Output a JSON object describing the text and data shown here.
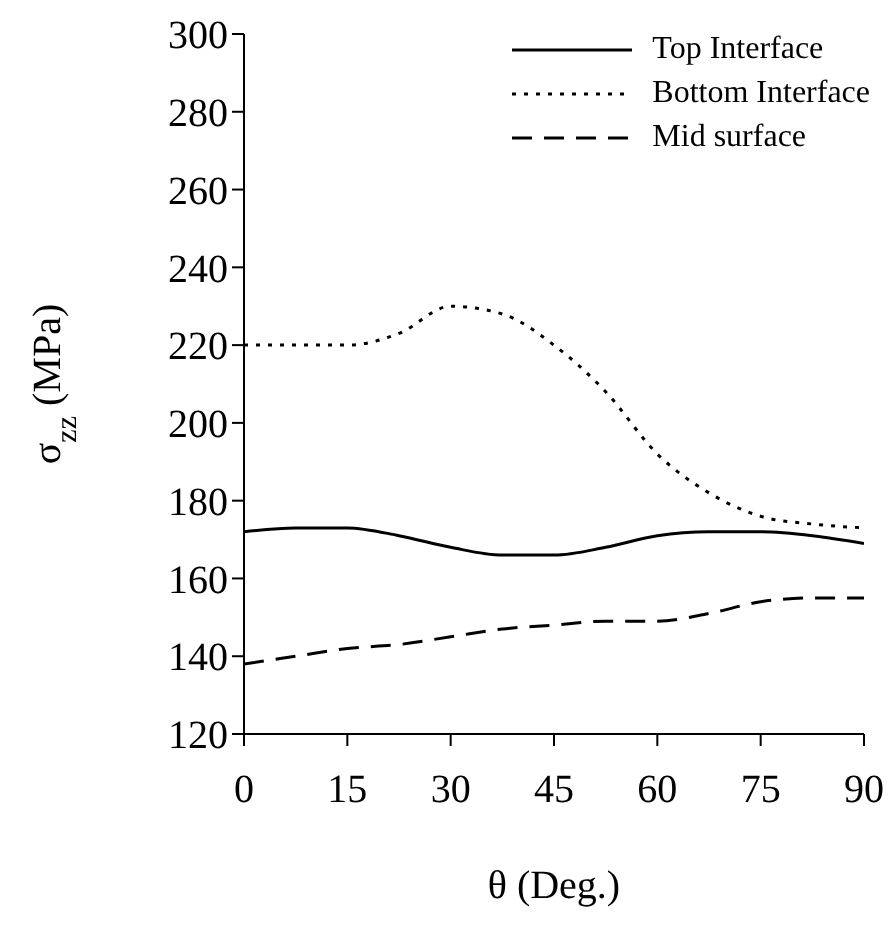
{
  "chart_data": {
    "type": "line",
    "xlabel": "θ (Deg.)",
    "ylabel": "σ$_{zz}$ (MPa)",
    "x": [
      0,
      7.5,
      15,
      22.5,
      30,
      37.5,
      45,
      52.5,
      60,
      67.5,
      75,
      82.5,
      90
    ],
    "series": [
      {
        "name": "Top Interface",
        "color": "#000000",
        "line_style": "solid",
        "values": [
          172,
          173,
          173,
          171,
          168,
          166,
          166,
          168,
          171,
          172,
          172,
          171,
          169
        ]
      },
      {
        "name": "Bottom Interface",
        "color": "#000000",
        "line_style": "dotted",
        "values": [
          220,
          220,
          220,
          223,
          230,
          228,
          220,
          208,
          192,
          182,
          176,
          174,
          173
        ]
      },
      {
        "name": "Mid surface",
        "color": "#000000",
        "line_style": "dashed",
        "values": [
          138,
          140,
          142,
          143,
          145,
          147,
          148,
          149,
          149,
          151,
          154,
          155,
          155
        ]
      }
    ],
    "xlim": [
      0,
      90
    ],
    "xticks": [
      0,
      15,
      30,
      45,
      60,
      75,
      90
    ],
    "ylim": [
      120,
      300
    ],
    "yticks": [
      120,
      140,
      160,
      180,
      200,
      220,
      240,
      260,
      280,
      300
    ],
    "grid": false,
    "legend": "top right",
    "marker": "none"
  }
}
